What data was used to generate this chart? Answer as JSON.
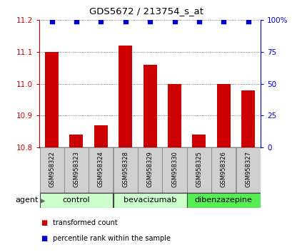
{
  "title": "GDS5672 / 213754_s_at",
  "samples": [
    "GSM958322",
    "GSM958323",
    "GSM958324",
    "GSM958328",
    "GSM958329",
    "GSM958330",
    "GSM958325",
    "GSM958326",
    "GSM958327"
  ],
  "bar_values": [
    11.1,
    10.84,
    10.87,
    11.12,
    11.06,
    11.0,
    10.84,
    11.0,
    10.98
  ],
  "percentile_values": [
    99,
    99,
    99,
    99,
    99,
    99,
    99,
    99,
    99
  ],
  "bar_color": "#cc0000",
  "percentile_color": "#0000cc",
  "ylim_left": [
    10.8,
    11.2
  ],
  "ylim_right": [
    0,
    100
  ],
  "yticks_left": [
    10.8,
    10.9,
    11.0,
    11.1,
    11.2
  ],
  "yticks_right": [
    0,
    25,
    50,
    75,
    100
  ],
  "groups": [
    {
      "label": "control",
      "indices": [
        0,
        1,
        2
      ],
      "color": "#ccffcc"
    },
    {
      "label": "bevacizumab",
      "indices": [
        3,
        4,
        5
      ],
      "color": "#ccffcc"
    },
    {
      "label": "dibenzazepine",
      "indices": [
        6,
        7,
        8
      ],
      "color": "#55ee55"
    }
  ],
  "agent_label": "agent",
  "legend_items": [
    {
      "label": "transformed count",
      "color": "#cc0000"
    },
    {
      "label": "percentile rank within the sample",
      "color": "#0000cc"
    }
  ],
  "bar_width": 0.55,
  "background_color": "#ffffff",
  "grid_color": "#555555",
  "tick_label_color_left": "#cc0000",
  "tick_label_color_right": "#0000cc",
  "sample_box_color": "#d0d0d0",
  "sample_box_edge": "#888888"
}
